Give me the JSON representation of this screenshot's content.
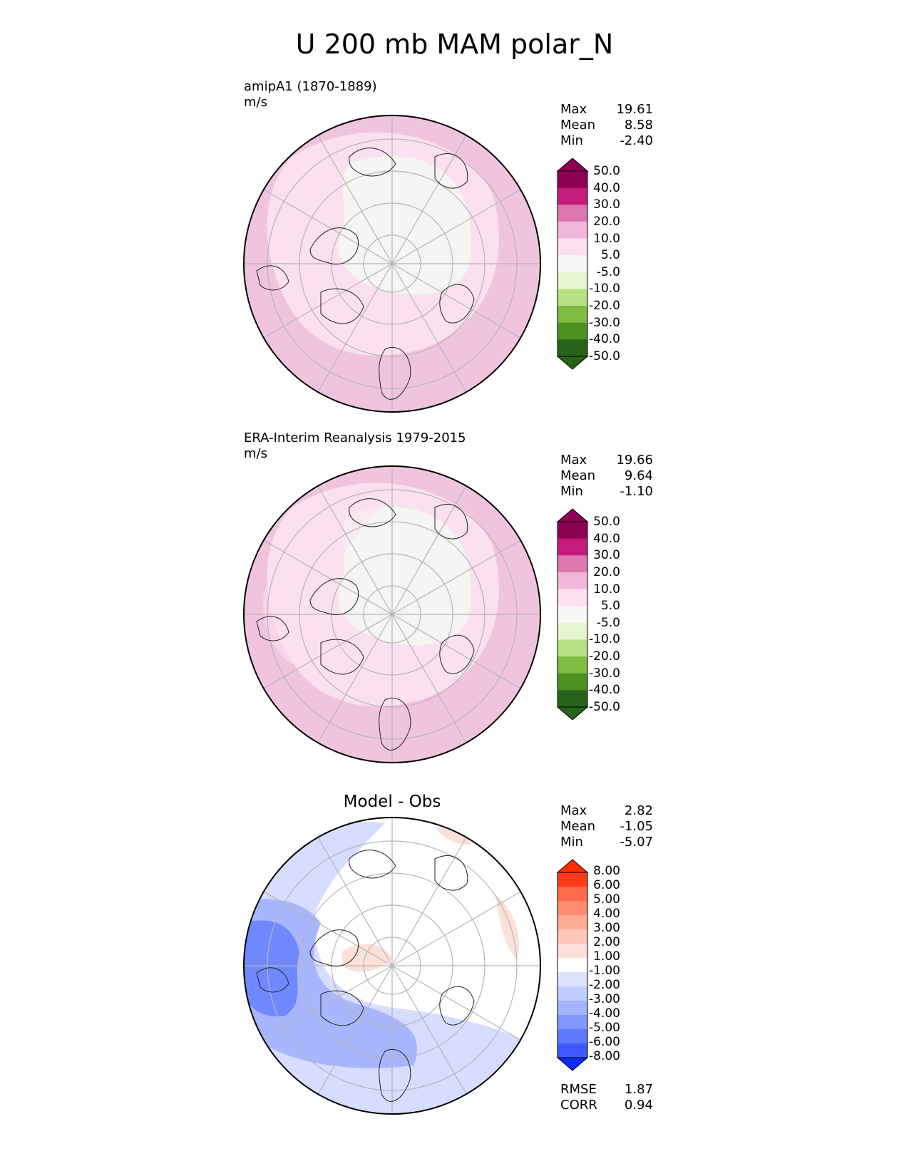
{
  "title": "U 200 mb MAM polar_N",
  "panels": [
    {
      "name": "amipA1 (1870-1889)",
      "units": "m/s",
      "stats": {
        "max_label": "Max",
        "max": "19.61",
        "mean_label": "Mean",
        "mean": "8.58",
        "min_label": "Min",
        "min": "-2.40"
      }
    },
    {
      "name": "ERA-Interim Reanalysis 1979-2015",
      "units": "m/s",
      "stats": {
        "max_label": "Max",
        "max": "19.66",
        "mean_label": "Mean",
        "mean": "9.64",
        "min_label": "Min",
        "min": "-1.10"
      }
    },
    {
      "name": "Model - Obs",
      "stats": {
        "max_label": "Max",
        "max": "2.82",
        "mean_label": "Mean",
        "mean": "-1.05",
        "min_label": "Min",
        "min": "-5.07"
      },
      "metrics": {
        "rmse_label": "RMSE",
        "rmse": "1.87",
        "corr_label": "CORR",
        "corr": "0.94"
      }
    }
  ],
  "colorbar_field": {
    "labels": [
      "50.0",
      "40.0",
      "30.0",
      "20.0",
      "10.0",
      "5.0",
      "-5.0",
      "-10.0",
      "-20.0",
      "-30.0",
      "-40.0",
      "-50.0"
    ],
    "colors": [
      "#8e0152",
      "#c51b7d",
      "#de77ae",
      "#f1b6da",
      "#fde0ef",
      "#f7f7f7",
      "#e6f5d0",
      "#b8e186",
      "#7fbc41",
      "#4d9221",
      "#276419"
    ],
    "top_color": "#8e0152",
    "bottom_color": "#276419",
    "bottom_fill": "#276419"
  },
  "colorbar_diff": {
    "labels": [
      "8.00",
      "6.00",
      "5.00",
      "4.00",
      "3.00",
      "2.00",
      "1.00",
      "-1.00",
      "-2.00",
      "-3.00",
      "-4.00",
      "-5.00",
      "-6.00",
      "-8.00"
    ],
    "colors": [
      "#ff3a1a",
      "#ff6a4a",
      "#ff8c70",
      "#ffab95",
      "#ffc7b8",
      "#fde0d8",
      "#ffffff",
      "#dde3ff",
      "#c2cdff",
      "#a3b3ff",
      "#8297ff",
      "#6078ff",
      "#3d58ff"
    ],
    "top_color": "#ff2d00",
    "bottom_color": "#0a2bff"
  },
  "map_colors": {
    "field_outer": "#f1c4de",
    "field_mid": "#fbe1ef",
    "field_core": "#f5f5f3",
    "diff_white": "#ffffff",
    "diff_blue_light": "#d6ddff",
    "diff_blue_mid": "#a7b6ff",
    "diff_blue_dark": "#6f87ff",
    "diff_red_light": "#fde0d8"
  }
}
